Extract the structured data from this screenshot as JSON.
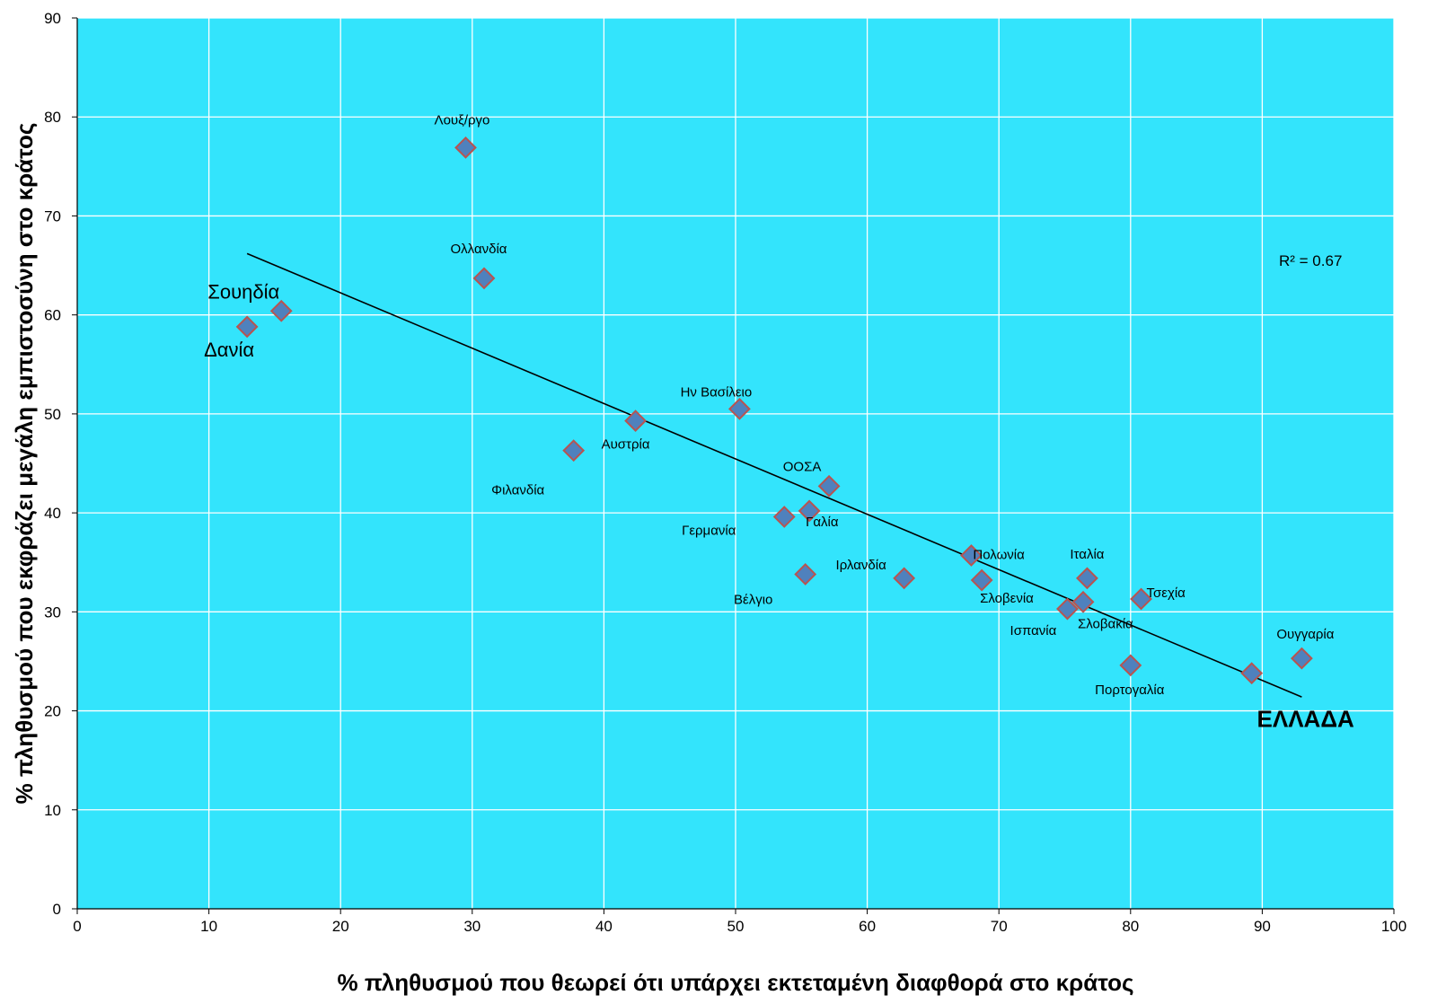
{
  "chart_data": {
    "type": "scatter",
    "title": "",
    "xlabel": "% πληθυσμού που θεωρεί ότι υπάρχει εκτεταμένη διαφθορά στο κράτος",
    "ylabel": "% πληθυσμού που εκφράζει μεγάλη εμπιστοσύνη στο κράτος",
    "xlim": [
      0,
      100
    ],
    "ylim": [
      0,
      90
    ],
    "xticks": [
      0,
      10,
      20,
      30,
      40,
      50,
      60,
      70,
      80,
      90,
      100
    ],
    "yticks": [
      0,
      10,
      20,
      30,
      40,
      50,
      60,
      70,
      80,
      90
    ],
    "grid": true,
    "background_color": "#33e4fc",
    "marker_color": "#4f81bd",
    "marker_edge_color": "#b85450",
    "trendline": {
      "x": [
        12.9,
        93.0
      ],
      "y": [
        66.2,
        21.4
      ]
    },
    "r2_label": "R² = 0.67",
    "points": [
      {
        "name": "Λουξ/ργο",
        "x": 29.5,
        "y": 76.9
      },
      {
        "name": "Ολλανδία",
        "x": 30.9,
        "y": 63.7
      },
      {
        "name": "Σουηδία",
        "x": 15.5,
        "y": 60.4
      },
      {
        "name": "Δανία",
        "x": 12.9,
        "y": 58.8
      },
      {
        "name": "Ην Βασίλειο",
        "x": 50.3,
        "y": 50.5
      },
      {
        "name": "Αυστρία",
        "x": 42.4,
        "y": 49.3
      },
      {
        "name": "Φιλανδία",
        "x": 37.7,
        "y": 46.3
      },
      {
        "name": "ΟΟΣΑ",
        "x": 57.1,
        "y": 42.7
      },
      {
        "name": "Γαλία",
        "x": 55.6,
        "y": 40.2
      },
      {
        "name": "Γερμανία",
        "x": 53.7,
        "y": 39.6
      },
      {
        "name": "Βέλγιο",
        "x": 55.3,
        "y": 33.8
      },
      {
        "name": "Ιρλανδία",
        "x": 62.8,
        "y": 33.4
      },
      {
        "name": "Πολωνία",
        "x": 67.9,
        "y": 35.7
      },
      {
        "name": "Σλοβενία",
        "x": 68.7,
        "y": 33.2
      },
      {
        "name": "Ιταλία",
        "x": 76.7,
        "y": 33.4
      },
      {
        "name": "Τσεχία",
        "x": 80.8,
        "y": 31.3
      },
      {
        "name": "Σλοβακία",
        "x": 76.4,
        "y": 31.0
      },
      {
        "name": "Ισπανία",
        "x": 75.2,
        "y": 30.3
      },
      {
        "name": "Πορτογαλία",
        "x": 80.0,
        "y": 24.6
      },
      {
        "name": "Ουγγαρία",
        "x": 93.0,
        "y": 25.3
      },
      {
        "name": "ΕΛΛΑΔΑ",
        "x": 89.2,
        "y": 23.8
      }
    ]
  }
}
